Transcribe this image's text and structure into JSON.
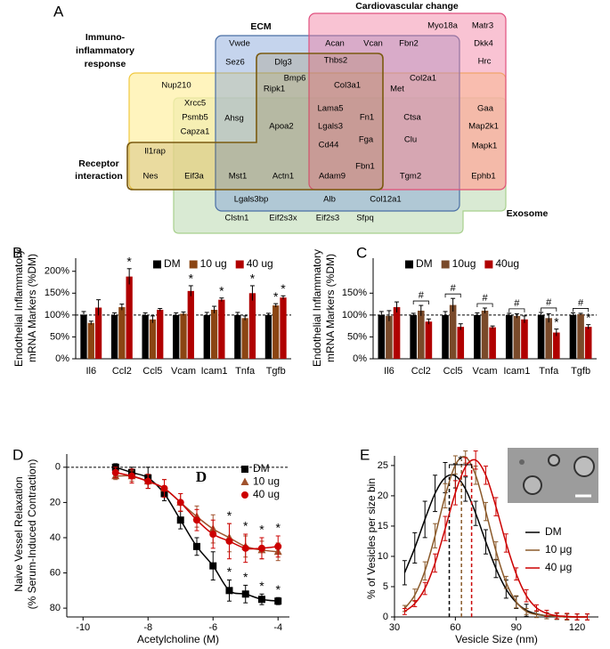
{
  "panel_a": {
    "label": "A",
    "sets": {
      "ecm": "ECM",
      "cardiovascular": "Cardiovascular change",
      "immuno": [
        "Immuno-",
        "inflammatory",
        "response"
      ],
      "receptor": [
        "Receptor",
        "interaction"
      ],
      "exosome": "Exosome"
    },
    "genes": [
      "Vwde",
      "Sez6",
      "Acan",
      "Vcan",
      "Fbn2",
      "Myo18a",
      "Matr3",
      "Dkk4",
      "Hrc",
      "Dlg3",
      "Thbs2",
      "Nup210",
      "Bmp6",
      "Ripk1",
      "Col3a1",
      "Col2a1",
      "Met",
      "Xrcc5",
      "Psmb5",
      "Capza1",
      "Ahsg",
      "Apoa2",
      "Lama5",
      "Lgals3",
      "Cd44",
      "Fn1",
      "Fga",
      "Ctsa",
      "Clu",
      "Gaa",
      "Map2k1",
      "Mapk1",
      "Il1rap",
      "Nes",
      "Eif3a",
      "Mst1",
      "Actn1",
      "Adam9",
      "Fbn1",
      "Tgm2",
      "Ephb1",
      "Lgals3bp",
      "Alb",
      "Col12a1",
      "Clstn1",
      "Eif2s3x",
      "Eif2s3",
      "Sfpq"
    ]
  },
  "chart_data": [
    {
      "type": "bar",
      "panel_label": "B",
      "ylabel": [
        "Endothelial Inflammatory",
        "mRNA Markers (%DM)"
      ],
      "categories": [
        "Il6",
        "Ccl2",
        "Ccl5",
        "Vcam",
        "Icam1",
        "Tnfa",
        "Tgfb"
      ],
      "ylim": [
        0,
        230
      ],
      "yticks": [
        {
          "value": 0,
          "label": "0%"
        },
        {
          "value": 50,
          "label": "50%"
        },
        {
          "value": 100,
          "label": "100%"
        },
        {
          "value": 150,
          "label": "150%"
        },
        {
          "value": 200,
          "label": "200%"
        }
      ],
      "hline": 100,
      "series": [
        {
          "name": "DM",
          "color": "#000000",
          "values": [
            100,
            100,
            100,
            100,
            100,
            100,
            100
          ],
          "errors": [
            8,
            5,
            5,
            5,
            6,
            6,
            4
          ],
          "sig": [
            null,
            null,
            null,
            null,
            null,
            null,
            null
          ]
        },
        {
          "name": "10 ug",
          "color": "#8b4513",
          "values": [
            82,
            118,
            90,
            103,
            112,
            93,
            122
          ],
          "errors": [
            4,
            7,
            8,
            4,
            8,
            5,
            4
          ],
          "sig": [
            null,
            null,
            null,
            null,
            null,
            null,
            "*"
          ]
        },
        {
          "name": "40 ug",
          "color": "#b00000",
          "values": [
            117,
            188,
            112,
            155,
            135,
            150,
            140
          ],
          "errors": [
            18,
            18,
            3,
            12,
            4,
            17,
            4
          ],
          "sig": [
            null,
            "*",
            null,
            "*",
            "*",
            "*",
            "*"
          ]
        }
      ]
    },
    {
      "type": "bar",
      "panel_label": "C",
      "ylabel": [
        "Endothelial Inflammatory",
        "mRNA Markers (%DM)"
      ],
      "categories": [
        "Il6",
        "Ccl2",
        "Ccl5",
        "Vcam",
        "Icam1",
        "Tnfa",
        "Tgfb"
      ],
      "ylim": [
        0,
        230
      ],
      "yticks": [
        {
          "value": 0,
          "label": "0%"
        },
        {
          "value": 50,
          "label": "50%"
        },
        {
          "value": 100,
          "label": "100%"
        },
        {
          "value": 150,
          "label": "150%"
        }
      ],
      "hline": 100,
      "group_marks": [
        null,
        "#",
        "#",
        "#",
        "#",
        "#",
        "#"
      ],
      "series": [
        {
          "name": "DM",
          "color": "#000000",
          "values": [
            100,
            100,
            100,
            100,
            100,
            100,
            100
          ],
          "errors": [
            8,
            4,
            8,
            5,
            4,
            6,
            5
          ],
          "sig": [
            null,
            null,
            null,
            null,
            null,
            null,
            null
          ]
        },
        {
          "name": "10ug",
          "color": "#7a4a2a",
          "values": [
            98,
            110,
            123,
            110,
            98,
            93,
            102
          ],
          "errors": [
            12,
            12,
            15,
            6,
            5,
            10,
            2
          ],
          "sig": [
            null,
            null,
            null,
            null,
            null,
            null,
            null
          ]
        },
        {
          "name": "40ug",
          "color": "#b00000",
          "values": [
            118,
            85,
            73,
            72,
            90,
            60,
            73
          ],
          "errors": [
            12,
            6,
            7,
            3,
            8,
            8,
            5
          ],
          "sig": [
            null,
            null,
            null,
            null,
            null,
            "*",
            "*"
          ]
        }
      ]
    },
    {
      "type": "line",
      "panel_label": "D",
      "annotation": "D",
      "ylabel": [
        "Naive Vessel Relaxation",
        "(% Serum-Induced Contraction)"
      ],
      "xlabel": "Acetylcholine (M)",
      "x": [
        -9,
        -8.5,
        -8,
        -7.5,
        -7,
        -6.5,
        -6,
        -5.5,
        -5,
        -4.5,
        -4
      ],
      "xlim": [
        -10.5,
        -3.65
      ],
      "xticks": [
        -10,
        -8,
        -6,
        -4
      ],
      "ylim": [
        -7.5,
        85
      ],
      "yticks": [
        0,
        20,
        40,
        60,
        80
      ],
      "y_inverted": true,
      "hline": 0,
      "series": [
        {
          "name": "DM",
          "color": "#000000",
          "marker": "square",
          "values": [
            0,
            3,
            6,
            15,
            30,
            45,
            56,
            70,
            72,
            75,
            76
          ],
          "errors": [
            2,
            3,
            6,
            4,
            5,
            5,
            8,
            6,
            5,
            3,
            2
          ],
          "sig": [
            null,
            null,
            null,
            null,
            null,
            null,
            null,
            "*",
            "*",
            "*",
            "*"
          ]
        },
        {
          "name": "10 ug",
          "color": "#a0522d",
          "marker": "triangle",
          "values": [
            5,
            5,
            8,
            12,
            20,
            28,
            35,
            40,
            45,
            47,
            48
          ],
          "errors": [
            2,
            3,
            4,
            5,
            5,
            6,
            8,
            8,
            6,
            5,
            5
          ]
        },
        {
          "name": "40 ug",
          "color": "#cc0000",
          "marker": "circle",
          "values": [
            3,
            5,
            8,
            12,
            20,
            30,
            38,
            42,
            46,
            46,
            45
          ],
          "errors": [
            3,
            4,
            4,
            5,
            5,
            6,
            8,
            10,
            8,
            6,
            6
          ],
          "sig": [
            null,
            null,
            null,
            null,
            null,
            null,
            null,
            "*",
            "*",
            "*",
            "*"
          ]
        }
      ]
    },
    {
      "type": "line",
      "panel_label": "E",
      "significance": "*",
      "ylabel": [
        "% of Vesicles per size bin"
      ],
      "xlabel": "Vesicle Size (nm)",
      "x": [
        35,
        40,
        45,
        50,
        55,
        60,
        65,
        70,
        75,
        80,
        85,
        90,
        95,
        100,
        105,
        110,
        115,
        120,
        125
      ],
      "xlim": [
        30,
        130.5
      ],
      "xticks": [
        30,
        60,
        90,
        120
      ],
      "ylim": [
        0,
        26.6
      ],
      "yticks": [
        0,
        5,
        10,
        15,
        20,
        25
      ],
      "series": [
        {
          "name": "DM",
          "color": "#000000",
          "mean": 57,
          "values": [
            7.3,
            11.4,
            16.1,
            20.4,
            23.0,
            23.3,
            21.1,
            17.1,
            12.4,
            8.0,
            4.6,
            2.4,
            1.1,
            0.5,
            0.2,
            0.1,
            0,
            0,
            0
          ],
          "errors": [
            2,
            2.5,
            3,
            3,
            2.5,
            2,
            2,
            2,
            2,
            1.5,
            1.5,
            1,
            1,
            0.5,
            0.5,
            0.5,
            0.5,
            0.5,
            0.5
          ]
        },
        {
          "name": "10 μg",
          "color": "#8b5a2b",
          "mean": 63,
          "values": [
            1.4,
            3.6,
            7.6,
            13.4,
            20.0,
            25.1,
            26.4,
            23.4,
            17.4,
            10.9,
            5.7,
            2.5,
            0.9,
            0.4,
            0.2,
            0.1,
            0,
            0,
            0
          ],
          "errors": [
            0.5,
            1,
            1.5,
            2,
            2,
            1.5,
            1,
            1.5,
            1.5,
            1.5,
            1,
            1,
            0.5,
            0.5,
            0.5,
            0.5,
            0.5,
            0.5,
            0.5
          ]
        },
        {
          "name": "40 μg",
          "color": "#cc0000",
          "mean": 68,
          "values": [
            0.9,
            2.2,
            4.7,
            8.9,
            14.6,
            20.5,
            24.8,
            25.9,
            23.4,
            18.2,
            12.2,
            7.1,
            3.5,
            1.5,
            0.6,
            0.2,
            0.1,
            0,
            0
          ],
          "errors": [
            0.5,
            0.5,
            1,
            1.5,
            2,
            2,
            1.5,
            1.5,
            1.5,
            1.5,
            1.5,
            1,
            1,
            0.5,
            0.5,
            0.5,
            0.5,
            0.5,
            0.5
          ]
        }
      ]
    }
  ]
}
